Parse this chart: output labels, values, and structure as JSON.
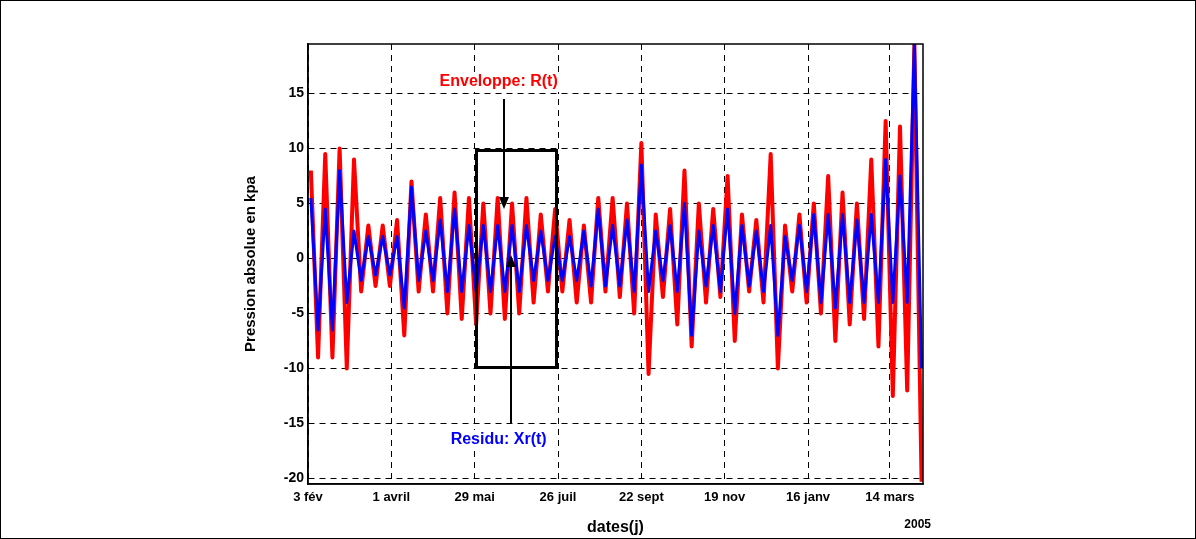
{
  "chart_data": {
    "type": "line",
    "xlabel": "dates(j)",
    "ylabel": "Pression absolue en kpa",
    "annotations": [
      "2005"
    ],
    "x": [
      "2004-02-05",
      "2004-02-10",
      "2004-02-15",
      "2004-02-20",
      "2004-02-25",
      "2004-03-01",
      "2004-03-06",
      "2004-03-11",
      "2004-03-16",
      "2004-03-21",
      "2004-03-26",
      "2004-03-31",
      "2004-04-05",
      "2004-04-10",
      "2004-04-15",
      "2004-04-20",
      "2004-04-25",
      "2004-04-30",
      "2004-05-05",
      "2004-05-10",
      "2004-05-15",
      "2004-05-20",
      "2004-05-25",
      "2004-05-30",
      "2004-06-04",
      "2004-06-09",
      "2004-06-14",
      "2004-06-19",
      "2004-06-24",
      "2004-06-29",
      "2004-07-04",
      "2004-07-09",
      "2004-07-14",
      "2004-07-19",
      "2004-07-24",
      "2004-07-29",
      "2004-08-03",
      "2004-08-08",
      "2004-08-13",
      "2004-08-18",
      "2004-08-23",
      "2004-08-28",
      "2004-09-02",
      "2004-09-07",
      "2004-09-12",
      "2004-09-17",
      "2004-09-22",
      "2004-09-27",
      "2004-10-02",
      "2004-10-07",
      "2004-10-12",
      "2004-10-17",
      "2004-10-22",
      "2004-10-27",
      "2004-11-01",
      "2004-11-06",
      "2004-11-11",
      "2004-11-16",
      "2004-11-21",
      "2004-11-26",
      "2004-12-01",
      "2004-12-06",
      "2004-12-11",
      "2004-12-16",
      "2004-12-21",
      "2004-12-26",
      "2004-12-31",
      "2005-01-05",
      "2005-01-10",
      "2005-01-15",
      "2005-01-20",
      "2005-01-25",
      "2005-01-30",
      "2005-02-04",
      "2005-02-09",
      "2005-02-14",
      "2005-02-19",
      "2005-02-24",
      "2005-03-01",
      "2005-03-06",
      "2005-03-11",
      "2005-03-16",
      "2005-03-21",
      "2005-03-26",
      "2005-03-31",
      "2005-04-05"
    ],
    "series": [
      {
        "name": "Enveloppe: R(t)",
        "color": "#ff0000",
        "values": [
          8,
          -9,
          9.5,
          -9,
          10,
          -10,
          9,
          -3,
          3,
          -2.5,
          3,
          -2.5,
          3.5,
          -7,
          7,
          -3,
          4,
          -3,
          5.5,
          -5,
          6,
          -5.5,
          5.5,
          -6,
          5,
          -5,
          5.5,
          -5.5,
          5,
          -5,
          5.5,
          -4,
          4,
          -3,
          4.5,
          -3,
          3.5,
          -4,
          3,
          -4,
          5.5,
          -3,
          5.5,
          -3.5,
          5,
          -5,
          10.5,
          -10.5,
          4,
          -3.5,
          4.5,
          -6,
          8,
          -8,
          5,
          -4,
          4.5,
          -3.5,
          7.5,
          -7.5,
          4,
          -3,
          3.5,
          -4,
          9.5,
          -10,
          3,
          -3,
          4,
          -4,
          5,
          -5,
          7.5,
          -7.5,
          6,
          -6,
          5,
          -5.5,
          9,
          -8,
          12.5,
          -12.5,
          12,
          -12,
          19.5,
          -20.3
        ]
      },
      {
        "name": "Residu: Xr(t)",
        "color": "#0000ff",
        "values": [
          5.5,
          -6.5,
          4.5,
          -6.5,
          8,
          -4,
          2.5,
          -2,
          2,
          -1.5,
          2,
          -1.5,
          2,
          -4.5,
          6.5,
          -2,
          2.5,
          -2,
          3.5,
          -3,
          4.5,
          -3,
          3,
          -3,
          3,
          -3,
          3,
          -3,
          3,
          -3,
          3,
          -2,
          2.5,
          -2,
          2,
          -2,
          2,
          -2,
          2.5,
          -2.5,
          4.5,
          -2.5,
          3,
          -2.5,
          3.5,
          -3,
          8.5,
          -3,
          2.5,
          -2,
          3,
          -3,
          5,
          -7,
          2.5,
          -2.5,
          3,
          -3,
          4.5,
          -5,
          3,
          -2.5,
          2.5,
          -3,
          3,
          -7,
          2,
          -2,
          3,
          -3,
          4,
          -4,
          4,
          -4.5,
          4,
          -4,
          3.5,
          -4,
          4,
          -4,
          9,
          -4,
          7.5,
          -4,
          19.5,
          -10
        ]
      }
    ],
    "xlim": [
      "2004-02-03",
      "2005-04-06"
    ],
    "xticks": [
      {
        "value": "2004-02-03",
        "label": "3 fév"
      },
      {
        "value": "2004-04-01",
        "label": "1 avril"
      },
      {
        "value": "2004-05-29",
        "label": "29 mai"
      },
      {
        "value": "2004-07-26",
        "label": "26 juil"
      },
      {
        "value": "2004-09-22",
        "label": "22 sept"
      },
      {
        "value": "2004-11-19",
        "label": "19 nov"
      },
      {
        "value": "2005-01-16",
        "label": "16 janv"
      },
      {
        "value": "2005-03-14",
        "label": "14 mars"
      }
    ],
    "ylim": [
      -20.5,
      19.5
    ],
    "yticks": [
      -20,
      -15,
      -10,
      -5,
      0,
      5,
      10,
      15
    ],
    "grid": true,
    "legend": false,
    "marker": "none",
    "line_style": "solid"
  }
}
